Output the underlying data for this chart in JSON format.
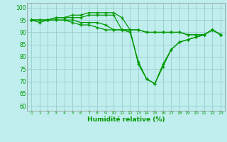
{
  "title": "",
  "xlabel": "Humidité relative (%)",
  "ylabel": "",
  "background_color": "#c0eeee",
  "grid_color": "#99cccc",
  "line_color": "#009900",
  "xlim": [
    -0.5,
    23.5
  ],
  "ylim": [
    58,
    102
  ],
  "yticks": [
    60,
    65,
    70,
    75,
    80,
    85,
    90,
    95,
    100
  ],
  "xticks": [
    0,
    1,
    2,
    3,
    4,
    5,
    6,
    7,
    8,
    9,
    10,
    11,
    12,
    13,
    14,
    15,
    16,
    17,
    18,
    19,
    20,
    21,
    22,
    23
  ],
  "series": [
    [
      95,
      94,
      95,
      95,
      95,
      94,
      93,
      93,
      92,
      91,
      91,
      91,
      91,
      91,
      90,
      90,
      90,
      90,
      90,
      89,
      89,
      89,
      91,
      89
    ],
    [
      95,
      95,
      95,
      95,
      95,
      95,
      94,
      94,
      94,
      93,
      91,
      91,
      91,
      91,
      90,
      90,
      90,
      90,
      90,
      89,
      89,
      89,
      91,
      89
    ],
    [
      95,
      95,
      95,
      96,
      96,
      96,
      96,
      97,
      97,
      97,
      97,
      91,
      90,
      78,
      71,
      69,
      77,
      83,
      86,
      87,
      88,
      89,
      91,
      89
    ],
    [
      95,
      95,
      95,
      96,
      96,
      97,
      97,
      98,
      98,
      98,
      98,
      96,
      91,
      77,
      71,
      69,
      76,
      83,
      86,
      87,
      88,
      89,
      91,
      89
    ]
  ]
}
